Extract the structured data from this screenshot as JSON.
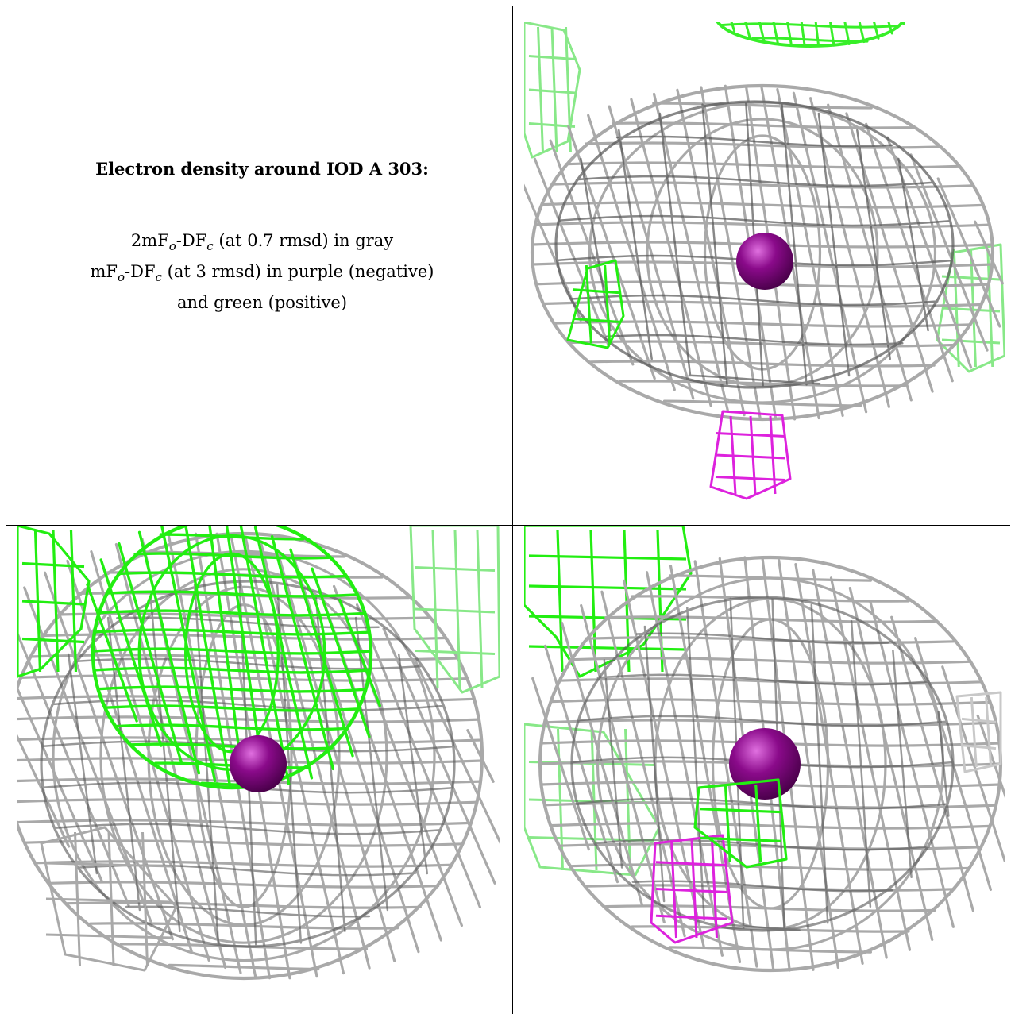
{
  "caption": {
    "title": "Electron density around IOD A 303:",
    "line1_pre": "2mF",
    "line1_sub1": "o",
    "line1_mid": "-DF",
    "line1_sub2": "c",
    "line1_post": " (at 0.7 rmsd) in gray",
    "line2_pre": "mF",
    "line2_sub1": "o",
    "line2_mid": "-DF",
    "line2_sub2": "c",
    "line2_post": " (at 3 rmsd) in purple (negative)",
    "line3": "and green (positive)"
  },
  "colors": {
    "gray_mesh": "#a9a9a9",
    "dark_mesh": "#555555",
    "green_mesh": "#22ee11",
    "light_green_mesh": "#88e888",
    "purple_mesh": "#dd22dd",
    "atom": "#8a0a8a"
  },
  "panels": [
    {
      "name": "top-right-view",
      "atom": "iodine-atom"
    },
    {
      "name": "bottom-left-view",
      "atom": "iodine-atom"
    },
    {
      "name": "bottom-right-view",
      "atom": "iodine-atom"
    }
  ]
}
